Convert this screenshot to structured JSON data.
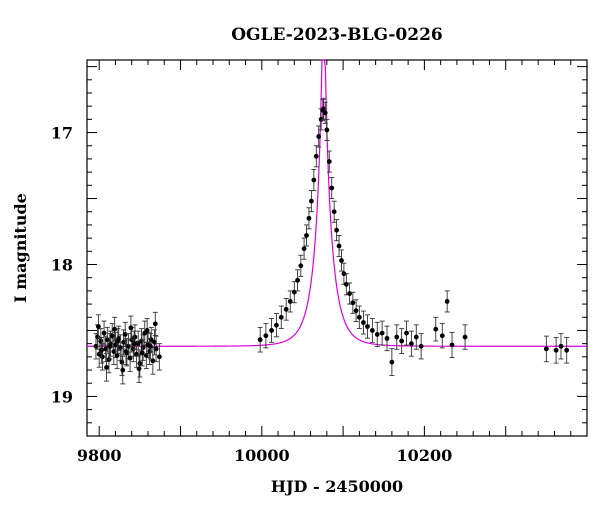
{
  "chart_data": {
    "type": "scatter",
    "title": "OGLE-2023-BLG-0226",
    "xlabel": "HJD - 2450000",
    "ylabel": "I magnitude",
    "xlim": [
      9785,
      10400
    ],
    "ylim": [
      19.3,
      16.45
    ],
    "y_inverted": true,
    "x_ticks": [
      9800,
      10000,
      10200
    ],
    "y_ticks": [
      17,
      18,
      19
    ],
    "grid": false,
    "colors": {
      "points": "#000000",
      "model": "#e000e0"
    },
    "series": [
      {
        "values": [
          [
            9796,
            18.62
          ],
          [
            9798,
            18.55
          ],
          [
            9800,
            18.68
          ],
          [
            9802,
            18.58
          ],
          [
            9804,
            18.7
          ],
          [
            9806,
            18.52
          ],
          [
            9808,
            18.64
          ],
          [
            9810,
            18.57
          ],
          [
            9812,
            18.72
          ],
          [
            9814,
            18.6
          ],
          [
            9816,
            18.54
          ],
          [
            9818,
            18.66
          ],
          [
            9820,
            18.61
          ],
          [
            9822,
            18.69
          ],
          [
            9824,
            18.56
          ],
          [
            9826,
            18.63
          ],
          [
            9828,
            18.74
          ],
          [
            9830,
            18.59
          ],
          [
            9832,
            18.53
          ],
          [
            9834,
            18.67
          ],
          [
            9836,
            18.62
          ],
          [
            9838,
            18.71
          ],
          [
            9840,
            18.57
          ],
          [
            9842,
            18.64
          ],
          [
            9844,
            18.55
          ],
          [
            9846,
            18.68
          ],
          [
            9848,
            18.6
          ],
          [
            9850,
            18.75
          ],
          [
            9852,
            18.58
          ],
          [
            9854,
            18.63
          ],
          [
            9856,
            18.52
          ],
          [
            9858,
            18.69
          ],
          [
            9860,
            18.61
          ],
          [
            9862,
            18.66
          ],
          [
            9864,
            18.57
          ],
          [
            9866,
            18.73
          ],
          [
            9868,
            18.59
          ],
          [
            9870,
            18.64
          ],
          [
            9874,
            18.7
          ],
          [
            9799,
            18.47
          ],
          [
            9809,
            18.78
          ],
          [
            9819,
            18.49
          ],
          [
            9829,
            18.8
          ],
          [
            9839,
            18.48
          ],
          [
            9849,
            18.79
          ],
          [
            9859,
            18.5
          ],
          [
            9869,
            18.45
          ],
          [
            9803,
            18.65
          ],
          [
            9813,
            18.62
          ],
          [
            9823,
            18.58
          ],
          [
            9833,
            18.66
          ],
          [
            9843,
            18.6
          ],
          [
            9853,
            18.67
          ],
          [
            9863,
            18.62
          ],
          [
            9998,
            18.57
          ],
          [
            10005,
            18.54
          ],
          [
            10012,
            18.5
          ],
          [
            10018,
            18.46
          ],
          [
            10024,
            18.4
          ],
          [
            10030,
            18.34
          ],
          [
            10035,
            18.28
          ],
          [
            10040,
            18.21
          ],
          [
            10044,
            18.12
          ],
          [
            10048,
            18.01
          ],
          [
            10052,
            17.88
          ],
          [
            10055,
            17.78
          ],
          [
            10058,
            17.65
          ],
          [
            10061,
            17.52
          ],
          [
            10064,
            17.36
          ],
          [
            10067,
            17.18
          ],
          [
            10070,
            17.03
          ],
          [
            10073,
            16.9
          ],
          [
            10075,
            16.83
          ],
          [
            10076,
            16.82
          ],
          [
            10078,
            16.85
          ],
          [
            10080,
            16.98
          ],
          [
            10083,
            17.22
          ],
          [
            10086,
            17.42
          ],
          [
            10089,
            17.6
          ],
          [
            10092,
            17.74
          ],
          [
            10095,
            17.86
          ],
          [
            10098,
            17.97
          ],
          [
            10101,
            18.07
          ],
          [
            10104,
            18.15
          ],
          [
            10108,
            18.22
          ],
          [
            10112,
            18.29
          ],
          [
            10116,
            18.35
          ],
          [
            10120,
            18.4
          ],
          [
            10125,
            18.44
          ],
          [
            10130,
            18.47
          ],
          [
            10136,
            18.5
          ],
          [
            10142,
            18.53
          ],
          [
            10148,
            18.52
          ],
          [
            10154,
            18.56
          ],
          [
            10160,
            18.74
          ],
          [
            10166,
            18.55
          ],
          [
            10172,
            18.58
          ],
          [
            10178,
            18.52
          ],
          [
            10184,
            18.6
          ],
          [
            10190,
            18.55
          ],
          [
            10196,
            18.62
          ],
          [
            10214,
            18.49
          ],
          [
            10222,
            18.54
          ],
          [
            10228,
            18.28
          ],
          [
            10234,
            18.61
          ],
          [
            10250,
            18.55
          ],
          [
            10350,
            18.64
          ],
          [
            10362,
            18.65
          ],
          [
            10368,
            18.62
          ],
          [
            10375,
            18.65
          ]
        ]
      }
    ],
    "model": {
      "t0": 10076,
      "tE": 20,
      "u0": 0.095,
      "baseline_mag": 18.62
    }
  }
}
